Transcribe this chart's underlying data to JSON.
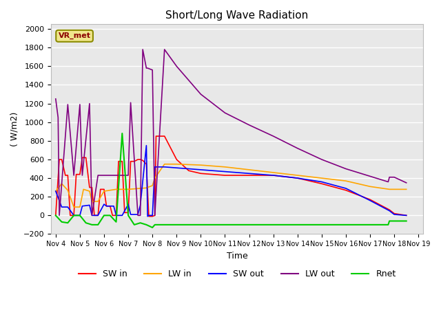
{
  "title": "Short/Long Wave Radiation",
  "ylabel": "( W/m2)",
  "xlabel": "Time",
  "ylim": [
    -200,
    2050
  ],
  "annotation": "VR_met",
  "xtick_labels": [
    "Nov 4",
    "Nov 5",
    "Nov 6",
    "Nov 7",
    "Nov 8",
    "Nov 9",
    "Nov 10",
    "Nov 11",
    "Nov 12",
    "Nov 13",
    "Nov 14",
    "Nov 15",
    "Nov 16",
    "Nov 17",
    "Nov 18",
    "Nov 19"
  ],
  "SW_in_x": [
    0,
    0.15,
    0.25,
    0.4,
    0.5,
    0.6,
    0.75,
    0.85,
    1.0,
    1.1,
    1.25,
    1.4,
    1.5,
    1.6,
    1.75,
    1.85,
    2.0,
    2.1,
    2.25,
    2.35,
    2.5,
    2.6,
    2.75,
    2.85,
    3.0,
    3.1,
    3.25,
    3.4,
    3.5,
    3.6,
    3.75,
    3.85,
    4.0,
    4.1,
    4.15,
    4.2,
    4.5,
    5.0,
    5.5,
    6.0,
    7.0,
    8.0,
    9.0,
    10.0,
    11.0,
    12.0,
    13.0,
    13.8,
    14.0,
    14.5
  ],
  "SW_in_y": [
    0,
    600,
    600,
    430,
    430,
    0,
    0,
    440,
    440,
    620,
    620,
    300,
    300,
    0,
    0,
    280,
    280,
    100,
    100,
    0,
    0,
    580,
    580,
    30,
    30,
    580,
    580,
    600,
    600,
    590,
    550,
    -10,
    -10,
    0,
    850,
    850,
    850,
    600,
    480,
    450,
    430,
    430,
    430,
    400,
    340,
    270,
    170,
    60,
    20,
    0
  ],
  "LW_in_x": [
    0,
    0.25,
    0.5,
    0.75,
    1.0,
    1.15,
    1.4,
    1.5,
    1.75,
    2.0,
    2.5,
    3.0,
    3.5,
    3.75,
    4.0,
    4.1,
    4.5,
    5.0,
    6.0,
    7.0,
    8.0,
    9.0,
    10.0,
    11.0,
    12.0,
    13.0,
    13.8,
    14.0,
    14.5
  ],
  "LW_in_y": [
    260,
    340,
    270,
    90,
    90,
    280,
    260,
    150,
    150,
    260,
    280,
    280,
    290,
    295,
    320,
    400,
    550,
    550,
    540,
    520,
    490,
    460,
    430,
    400,
    370,
    310,
    280,
    280,
    280
  ],
  "SW_out_x": [
    0,
    0.25,
    0.5,
    0.75,
    1.0,
    1.1,
    1.4,
    1.5,
    1.75,
    2.0,
    2.1,
    2.4,
    2.5,
    2.75,
    3.0,
    3.1,
    3.4,
    3.5,
    3.75,
    3.8,
    3.85,
    4.0,
    4.1,
    4.5,
    5.0,
    6.0,
    7.0,
    8.0,
    9.0,
    10.0,
    11.0,
    12.0,
    13.0,
    13.8,
    14.0,
    14.5
  ],
  "SW_out_y": [
    260,
    90,
    90,
    0,
    0,
    100,
    110,
    0,
    0,
    120,
    100,
    100,
    0,
    0,
    120,
    10,
    10,
    110,
    750,
    -10,
    0,
    0,
    520,
    520,
    510,
    490,
    470,
    450,
    430,
    400,
    360,
    290,
    160,
    50,
    10,
    0
  ],
  "LW_out_x": [
    0,
    0.1,
    0.15,
    0.5,
    0.75,
    1.0,
    1.1,
    1.4,
    1.5,
    1.75,
    2.0,
    2.5,
    3.0,
    3.1,
    3.4,
    3.5,
    3.6,
    3.75,
    3.8,
    4.0,
    4.1,
    4.5,
    5.0,
    6.0,
    7.0,
    8.0,
    9.0,
    10.0,
    11.0,
    12.0,
    13.0,
    13.75,
    13.8,
    14.0,
    14.5
  ],
  "LW_out_y": [
    1250,
    1050,
    0,
    1190,
    430,
    1190,
    430,
    1200,
    0,
    430,
    430,
    430,
    430,
    1210,
    0,
    0,
    1780,
    1580,
    1580,
    1560,
    0,
    1780,
    1600,
    1300,
    1100,
    970,
    850,
    720,
    600,
    500,
    420,
    360,
    410,
    410,
    350
  ],
  "Rnet_x": [
    0,
    0.25,
    0.5,
    0.75,
    1.0,
    1.25,
    1.5,
    1.75,
    2.0,
    2.25,
    2.5,
    2.75,
    3.0,
    3.25,
    3.5,
    3.75,
    4.0,
    4.1,
    5.0,
    6.0,
    7.0,
    8.0,
    9.0,
    10.0,
    11.0,
    12.0,
    13.0,
    13.75,
    13.8,
    14.0,
    14.5
  ],
  "Rnet_y": [
    0,
    -70,
    -80,
    0,
    0,
    -80,
    -100,
    -100,
    0,
    0,
    -70,
    880,
    0,
    -100,
    -80,
    -100,
    -130,
    -100,
    -100,
    -100,
    -100,
    -100,
    -100,
    -100,
    -100,
    -100,
    -100,
    -100,
    -60,
    -60,
    -60
  ]
}
